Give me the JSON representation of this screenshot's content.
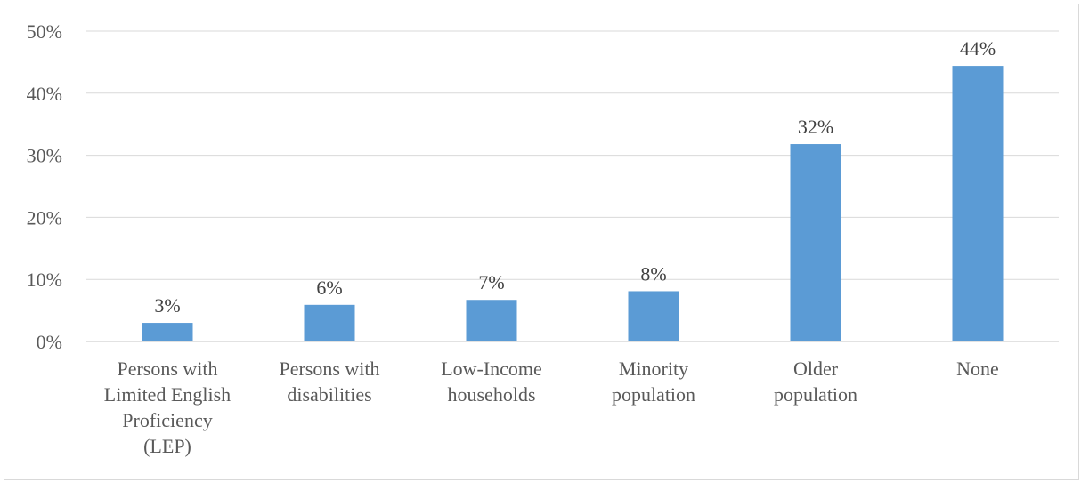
{
  "chart_data": {
    "type": "bar",
    "title": "",
    "xlabel": "",
    "ylabel": "",
    "categories": [
      [
        "Persons with",
        "Limited English",
        "Proficiency",
        "(LEP)"
      ],
      [
        "Persons with",
        "disabilities"
      ],
      [
        "Low-Income",
        "households"
      ],
      [
        "Minority",
        "population"
      ],
      [
        "Older",
        "population"
      ],
      [
        "None"
      ]
    ],
    "values": [
      3,
      6,
      7,
      8,
      32,
      44
    ],
    "plotted_values": [
      3,
      5.9,
      6.7,
      8.1,
      31.8,
      44.4
    ],
    "data_labels": [
      "3%",
      "6%",
      "7%",
      "8%",
      "32%",
      "44%"
    ],
    "ylim": [
      0,
      50
    ],
    "yticks": [
      0,
      10,
      20,
      30,
      40,
      50
    ],
    "ytick_labels": [
      "0%",
      "10%",
      "20%",
      "30%",
      "40%",
      "50%"
    ],
    "grid": true,
    "legend": "none",
    "colors": {
      "bar": "#5b9bd5",
      "grid": "#d9d9d9",
      "axis": "#d9d9d9",
      "tick_text": "#595959",
      "label_text": "#404040"
    }
  }
}
